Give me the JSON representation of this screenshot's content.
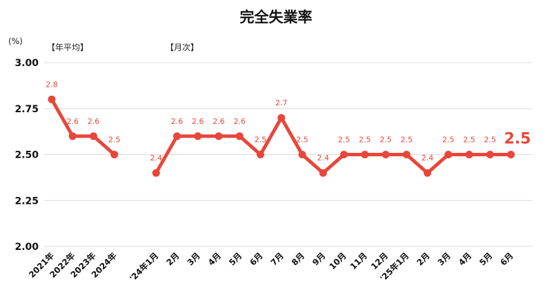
{
  "chart_data": {
    "type": "line",
    "title": "完全失業率",
    "unit_label": "(%)",
    "section_labels": [
      "【年平均】",
      "【月次】"
    ],
    "yticks": [
      "3.00",
      "2.75",
      "2.50",
      "2.25",
      "2.00"
    ],
    "ylim": [
      2.0,
      3.0
    ],
    "grid": true,
    "color": "#e8463a",
    "series": [
      {
        "categories": [
          "2021年",
          "2022年",
          "2023年",
          "2024年"
        ],
        "values": [
          2.8,
          2.6,
          2.6,
          2.5
        ],
        "labels": [
          "2.8",
          "2.6",
          "2.6",
          "2.5"
        ]
      },
      {
        "categories": [
          "'24年1月",
          "2月",
          "3月",
          "4月",
          "5月",
          "6月",
          "7月",
          "8月",
          "9月",
          "10月",
          "11月",
          "12月",
          "'25年1月",
          "2月",
          "3月",
          "4月",
          "5月",
          "6月"
        ],
        "values": [
          2.4,
          2.6,
          2.6,
          2.6,
          2.6,
          2.5,
          2.7,
          2.5,
          2.4,
          2.5,
          2.5,
          2.5,
          2.5,
          2.4,
          2.5,
          2.5,
          2.5,
          2.5
        ],
        "labels": [
          "2.4",
          "2.6",
          "2.6",
          "2.6",
          "2.6",
          "2.5",
          "2.7",
          "2.5",
          "2.4",
          "2.5",
          "2.5",
          "2.5",
          "2.5",
          "2.4",
          "2.5",
          "2.5",
          "2.5",
          "2.5"
        ]
      }
    ]
  }
}
